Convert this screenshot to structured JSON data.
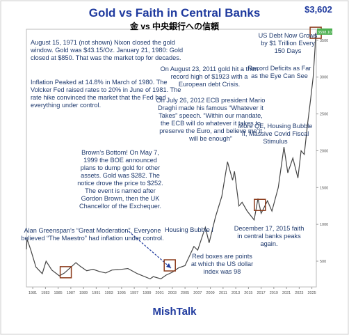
{
  "chart_data": {
    "type": "line",
    "title": "Gold vs Faith in Central Banks",
    "subtitle": "金 vs 中央銀行への信頼",
    "footer": "MishTalk",
    "end_label": "$3,602",
    "axis_tag": "3598.10",
    "x": [
      1980.0,
      1980.1,
      1980.7,
      1981.5,
      1982.5,
      1983.1,
      1984.0,
      1985.2,
      1986.0,
      1987.8,
      1988.5,
      1989.5,
      1990.5,
      1991.5,
      1992.5,
      1993.5,
      1994.5,
      1996.0,
      1997.5,
      1999.5,
      2000.0,
      2001.2,
      2002.0,
      2003.0,
      2004.0,
      2005.0,
      2006.4,
      2007.0,
      2008.2,
      2008.8,
      2009.8,
      2010.8,
      2011.7,
      2012.5,
      2012.8,
      2013.5,
      2014.0,
      2014.8,
      2015.9,
      2016.5,
      2017.0,
      2018.0,
      2018.7,
      2019.7,
      2020.6,
      2021.2,
      2022.0,
      2022.8,
      2023.3,
      2023.8,
      2024.3,
      2024.8,
      2025.2,
      2025.5,
      2025.6
    ],
    "values": [
      660,
      800,
      650,
      420,
      330,
      500,
      380,
      300,
      340,
      480,
      430,
      370,
      390,
      360,
      340,
      380,
      385,
      400,
      330,
      260,
      290,
      260,
      310,
      350,
      410,
      440,
      700,
      650,
      960,
      750,
      1100,
      1380,
      1850,
      1600,
      1720,
      1250,
      1300,
      1180,
      1060,
      1350,
      1150,
      1320,
      1180,
      1500,
      2050,
      1700,
      1900,
      1630,
      2000,
      1950,
      2350,
      2700,
      3000,
      3400,
      3602
    ],
    "color": "#444444",
    "xlim": [
      1980,
      2025.7
    ],
    "ylim": [
      150,
      3650
    ],
    "xticks": [
      1981,
      1983,
      1985,
      1987,
      1989,
      1991,
      1993,
      1995,
      1997,
      1999,
      2001,
      2003,
      2005,
      2007,
      2009,
      2011,
      2013,
      2015,
      2017,
      2019,
      2021,
      2023,
      2025
    ],
    "yticks": [
      500,
      1000,
      1500,
      2000,
      2500,
      3000,
      3500
    ],
    "highlights": [
      {
        "x": 1986.2,
        "y": 350
      },
      {
        "x": 2002.6,
        "y": 443
      },
      {
        "x": 2016.8,
        "y": 1264
      },
      {
        "x": 2025.6,
        "y": 3602
      }
    ],
    "highlight_color": "#8b3a1a",
    "annotations": [
      "August 15, 1971 (not shown) Nixon closed the gold window. Gold was $43.15/Oz. January 21, 1980: Gold closed at $850. That was the market top for decades.",
      "Inflation Peaked at 14.8% in March of 1980. The Volcker Fed raised rates to 20% in June of 1981. The rate hike convinced the market that the Fed had everything under control.",
      "On August 23, 2011 gold hit a then record high of $1923 with a European debt Crisis.",
      "On July 26, 2012 ECB president Mario Draghi made his famous “Whatever it Takes” speech. “Within our mandate, the ECB will do whatever it takes to preserve the Euro, and believe me it will be enough”",
      "Brown’s Bottom! On May 7, 1999 the BOE announced plans to dump gold for other assets. Gold was $282. The notice drove the price to $252. The event is named after Gordon Brown, then the UK Chancellor of the Exchequer.",
      "US Debt Now Grows by $1 Trillion Every 150 Days",
      "Record Deficits as Far as the Eye Can See",
      "More QE, Housing Bubble II, Massive Covid Fiscal Stimulus",
      "Alan Greenspan’s “Great Moderation”. Everyone believed “The Maestro” had inflation under control.",
      "Housing Bubble I",
      "December 17, 2015 faith in central banks peaks again.",
      "Red boxes are points at which the US dollar index was 98"
    ]
  }
}
